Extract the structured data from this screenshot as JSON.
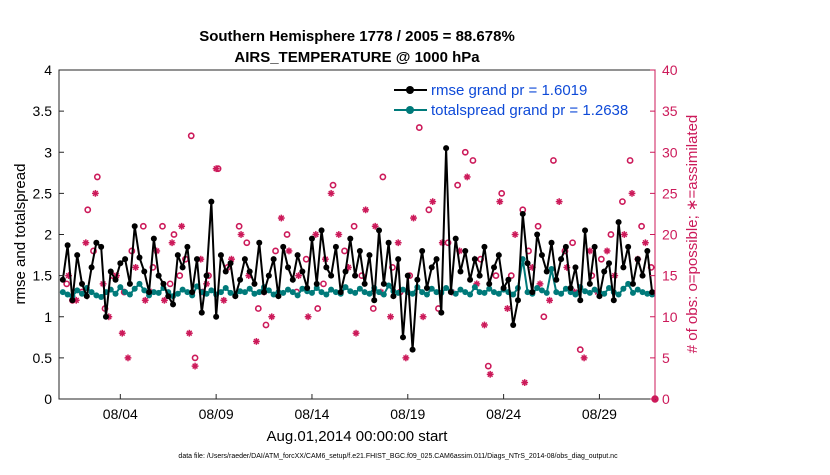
{
  "chart_data": {
    "type": "line",
    "title": "Southern Hemisphere 1778 / 2005 = 88.678%",
    "subtitle": "AIRS_TEMPERATURE @ 1000 hPa",
    "xlabel": "Aug.01,2014 00:00:00 start",
    "ylabel": "rmse and totalspread",
    "y2label": "# of obs: o=possible; ∗=assimilated",
    "footer": "data file: /Users/raeder/DAI/ATM_forcXX/CAM6_setup/f.e21.FHIST_BGC.f09_025.CAM6assim.011/Diags_NTrS_2014-08/obs_diag_output.nc",
    "xlim": [
      0.8,
      31.9
    ],
    "ylim": [
      0,
      4
    ],
    "y2lim": [
      0,
      40
    ],
    "xticks": [
      4,
      9,
      14,
      19,
      24,
      29
    ],
    "xtick_labels": [
      "08/04",
      "08/09",
      "08/14",
      "08/19",
      "08/24",
      "08/29"
    ],
    "yticks": [
      "0",
      "0.5",
      "1",
      "1.5",
      "2",
      "2.5",
      "3",
      "3.5",
      "4"
    ],
    "y2ticks": [
      "0",
      "5",
      "10",
      "15",
      "20",
      "25",
      "30",
      "35",
      "40"
    ],
    "legend_position": "top-right",
    "colors": {
      "rmse": "#000000",
      "spread": "#007a7a",
      "obs": "#cc1a5a"
    },
    "x": [
      1.0,
      1.25,
      1.5,
      1.75,
      2.0,
      2.25,
      2.5,
      2.75,
      3.0,
      3.25,
      3.5,
      3.75,
      4.0,
      4.25,
      4.5,
      4.75,
      5.0,
      5.25,
      5.5,
      5.75,
      6.0,
      6.25,
      6.5,
      6.75,
      7.0,
      7.25,
      7.5,
      7.75,
      8.0,
      8.25,
      8.5,
      8.75,
      9.0,
      9.25,
      9.5,
      9.75,
      10.0,
      10.25,
      10.5,
      10.75,
      11.0,
      11.25,
      11.5,
      11.75,
      12.0,
      12.25,
      12.5,
      12.75,
      13.0,
      13.25,
      13.5,
      13.75,
      14.0,
      14.25,
      14.5,
      14.75,
      15.0,
      15.25,
      15.5,
      15.75,
      16.0,
      16.25,
      16.5,
      16.75,
      17.0,
      17.25,
      17.5,
      17.75,
      18.0,
      18.25,
      18.5,
      18.75,
      19.0,
      19.25,
      19.5,
      19.75,
      20.0,
      20.25,
      20.5,
      20.75,
      21.0,
      21.25,
      21.5,
      21.75,
      22.0,
      22.25,
      22.5,
      22.75,
      23.0,
      23.25,
      23.5,
      23.75,
      24.0,
      24.25,
      24.5,
      24.75,
      25.0,
      25.25,
      25.5,
      25.75,
      26.0,
      26.25,
      26.5,
      26.75,
      27.0,
      27.25,
      27.5,
      27.75,
      28.0,
      28.25,
      28.5,
      28.75,
      29.0,
      29.25,
      29.5,
      29.75,
      30.0,
      30.25,
      30.5,
      30.75,
      31.0,
      31.25,
      31.5,
      31.75
    ],
    "series": [
      {
        "name": "rmse grand pr = 1.6019",
        "values": [
          1.45,
          1.87,
          1.2,
          1.75,
          1.4,
          1.25,
          1.6,
          1.9,
          1.85,
          1.0,
          1.55,
          1.45,
          1.65,
          1.7,
          1.4,
          2.1,
          1.72,
          1.55,
          1.3,
          1.95,
          1.5,
          1.4,
          1.25,
          1.15,
          1.75,
          1.6,
          1.85,
          1.3,
          1.7,
          1.05,
          1.5,
          2.4,
          1.0,
          1.75,
          1.55,
          1.65,
          1.25,
          1.45,
          1.7,
          1.55,
          1.4,
          1.9,
          1.3,
          1.5,
          1.7,
          1.25,
          1.85,
          1.6,
          1.45,
          1.75,
          1.55,
          1.35,
          1.95,
          1.4,
          2.05,
          1.6,
          1.5,
          1.85,
          1.3,
          1.55,
          1.95,
          1.5,
          1.8,
          1.4,
          1.75,
          1.2,
          2.05,
          1.4,
          1.9,
          1.25,
          1.7,
          0.75,
          1.5,
          0.6,
          1.45,
          1.8,
          1.35,
          1.6,
          1.7,
          1.05,
          3.05,
          1.3,
          1.95,
          1.55,
          1.8,
          1.45,
          1.7,
          1.5,
          1.85,
          1.4,
          1.6,
          1.75,
          1.35,
          1.45,
          0.9,
          1.2,
          2.25,
          1.65,
          1.3,
          2.0,
          1.75,
          1.55,
          1.9,
          1.45,
          1.7,
          1.85,
          1.35,
          1.6,
          1.2,
          2.05,
          1.4,
          1.85,
          1.25,
          1.55,
          1.65,
          1.2,
          2.15,
          1.6,
          1.85,
          1.4,
          1.7,
          1.5,
          1.8,
          1.3
        ]
      },
      {
        "name": "totalspread grand pr = 1.2638",
        "values": [
          1.3,
          1.27,
          1.25,
          1.32,
          1.28,
          1.35,
          1.3,
          1.26,
          1.24,
          1.3,
          1.33,
          1.28,
          1.36,
          1.3,
          1.27,
          1.34,
          1.4,
          1.32,
          1.26,
          1.3,
          1.29,
          1.35,
          1.3,
          1.25,
          1.28,
          1.33,
          1.3,
          1.26,
          1.37,
          1.3,
          1.28,
          1.32,
          1.27,
          1.3,
          1.35,
          1.29,
          1.26,
          1.31,
          1.3,
          1.34,
          1.28,
          1.3,
          1.36,
          1.32,
          1.27,
          1.3,
          1.29,
          1.33,
          1.3,
          1.26,
          1.34,
          1.31,
          1.29,
          1.35,
          1.3,
          1.27,
          1.33,
          1.3,
          1.28,
          1.36,
          1.31,
          1.29,
          1.34,
          1.3,
          1.28,
          1.35,
          1.3,
          1.27,
          1.38,
          1.31,
          1.29,
          1.33,
          1.3,
          1.28,
          1.36,
          1.3,
          1.27,
          1.34,
          1.3,
          1.29,
          1.35,
          1.31,
          1.28,
          1.33,
          1.3,
          1.27,
          1.36,
          1.3,
          1.29,
          1.34,
          1.3,
          1.28,
          1.33,
          1.3,
          1.27,
          1.35,
          1.7,
          1.3,
          1.28,
          1.35,
          1.32,
          1.29,
          1.58,
          1.3,
          1.28,
          1.34,
          1.3,
          1.27,
          1.36,
          1.31,
          1.29,
          1.33,
          1.3,
          1.28,
          1.35,
          1.3,
          1.27,
          1.34,
          1.4,
          1.29,
          1.33,
          1.3,
          1.28,
          1.27
        ]
      }
    ],
    "obs_possible": [
      [
        1.2,
        14
      ],
      [
        1.5,
        12
      ],
      [
        2.0,
        13
      ],
      [
        2.3,
        23
      ],
      [
        2.6,
        18
      ],
      [
        2.8,
        27
      ],
      [
        3.2,
        11
      ],
      [
        3.6,
        15
      ],
      [
        4.2,
        13
      ],
      [
        4.6,
        18
      ],
      [
        5.2,
        21
      ],
      [
        5.7,
        16
      ],
      [
        6.2,
        21
      ],
      [
        6.6,
        14
      ],
      [
        6.8,
        20
      ],
      [
        7.1,
        15
      ],
      [
        7.4,
        17
      ],
      [
        7.7,
        32
      ],
      [
        7.9,
        5
      ],
      [
        8.3,
        13
      ],
      [
        8.6,
        15
      ],
      [
        9.1,
        28
      ],
      [
        9.6,
        16
      ],
      [
        10.2,
        21
      ],
      [
        10.6,
        19
      ],
      [
        11.2,
        11
      ],
      [
        11.6,
        9
      ],
      [
        12.1,
        18
      ],
      [
        12.7,
        20
      ],
      [
        13.2,
        13
      ],
      [
        13.7,
        17
      ],
      [
        14.3,
        11
      ],
      [
        14.6,
        14
      ],
      [
        15.1,
        26
      ],
      [
        15.7,
        18
      ],
      [
        16.2,
        21
      ],
      [
        16.6,
        15
      ],
      [
        17.2,
        11
      ],
      [
        17.7,
        27
      ],
      [
        18.2,
        16
      ],
      [
        18.6,
        13
      ],
      [
        19.1,
        15
      ],
      [
        19.6,
        33
      ],
      [
        20.1,
        23
      ],
      [
        20.6,
        11
      ],
      [
        21.1,
        19
      ],
      [
        21.6,
        26
      ],
      [
        22.0,
        30
      ],
      [
        22.4,
        29
      ],
      [
        22.8,
        17
      ],
      [
        23.2,
        4
      ],
      [
        23.6,
        15
      ],
      [
        23.9,
        25
      ],
      [
        24.4,
        15
      ],
      [
        25.0,
        23
      ],
      [
        25.3,
        18
      ],
      [
        25.8,
        21
      ],
      [
        26.1,
        10
      ],
      [
        26.6,
        29
      ],
      [
        27.2,
        18
      ],
      [
        27.6,
        19
      ],
      [
        28.0,
        6
      ],
      [
        28.6,
        15
      ],
      [
        29.1,
        17
      ],
      [
        29.6,
        20
      ],
      [
        30.2,
        24
      ],
      [
        30.6,
        29
      ],
      [
        31.2,
        21
      ],
      [
        31.7,
        16
      ]
    ],
    "obs_assimilated": [
      [
        1.3,
        15
      ],
      [
        1.7,
        12
      ],
      [
        2.2,
        19
      ],
      [
        2.7,
        25
      ],
      [
        3.1,
        14
      ],
      [
        3.4,
        10
      ],
      [
        3.8,
        15
      ],
      [
        4.1,
        8
      ],
      [
        4.4,
        5
      ],
      [
        4.8,
        16
      ],
      [
        5.3,
        12
      ],
      [
        5.6,
        13
      ],
      [
        5.9,
        18
      ],
      [
        6.3,
        12
      ],
      [
        6.7,
        19
      ],
      [
        7.2,
        21
      ],
      [
        7.6,
        8
      ],
      [
        7.9,
        4
      ],
      [
        8.2,
        17
      ],
      [
        8.5,
        14
      ],
      [
        9.0,
        28
      ],
      [
        9.4,
        12
      ],
      [
        9.8,
        17
      ],
      [
        10.3,
        20
      ],
      [
        10.7,
        15
      ],
      [
        11.1,
        7
      ],
      [
        11.5,
        13
      ],
      [
        11.9,
        10
      ],
      [
        12.4,
        22
      ],
      [
        12.8,
        18
      ],
      [
        13.3,
        15
      ],
      [
        13.8,
        10
      ],
      [
        14.2,
        20
      ],
      [
        14.7,
        17
      ],
      [
        15.0,
        25
      ],
      [
        15.4,
        20
      ],
      [
        15.9,
        16
      ],
      [
        16.3,
        8
      ],
      [
        16.8,
        23
      ],
      [
        17.3,
        21
      ],
      [
        17.6,
        13
      ],
      [
        18.1,
        10
      ],
      [
        18.5,
        19
      ],
      [
        18.9,
        5
      ],
      [
        19.3,
        22
      ],
      [
        19.8,
        10
      ],
      [
        20.3,
        24
      ],
      [
        20.8,
        19
      ],
      [
        21.3,
        13
      ],
      [
        21.7,
        18
      ],
      [
        22.1,
        27
      ],
      [
        22.6,
        14
      ],
      [
        23.0,
        9
      ],
      [
        23.3,
        3
      ],
      [
        23.8,
        24
      ],
      [
        24.2,
        11
      ],
      [
        24.6,
        20
      ],
      [
        25.1,
        2
      ],
      [
        25.5,
        16
      ],
      [
        25.9,
        14
      ],
      [
        26.4,
        12
      ],
      [
        26.9,
        24
      ],
      [
        27.3,
        16
      ],
      [
        27.7,
        13
      ],
      [
        28.2,
        5
      ],
      [
        28.5,
        18
      ],
      [
        28.9,
        13
      ],
      [
        29.4,
        18
      ],
      [
        29.8,
        15
      ],
      [
        30.3,
        20
      ],
      [
        30.7,
        25
      ],
      [
        31.0,
        17
      ],
      [
        31.4,
        19
      ]
    ]
  }
}
